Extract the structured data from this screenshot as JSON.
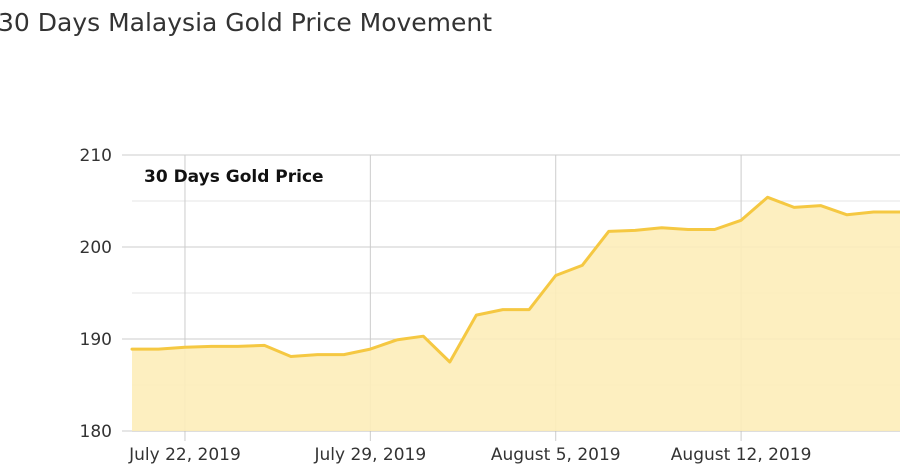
{
  "page": {
    "title": "30 Days Malaysia Gold Price Movement"
  },
  "chart_data": {
    "type": "area",
    "title": "30 Days Gold Price",
    "xlabel": "",
    "ylabel": "",
    "ylim": [
      180,
      210
    ],
    "y_ticks": [
      180,
      190,
      200,
      210
    ],
    "y_tick_labels": [
      "180",
      "190",
      "200",
      "210"
    ],
    "x_tick_labels": [
      {
        "label": "July 22, 2019",
        "index": 2
      },
      {
        "label": "July 29, 2019",
        "index": 9
      },
      {
        "label": "August 5, 2019",
        "index": 16
      },
      {
        "label": "August 12, 2019",
        "index": 23
      }
    ],
    "grid": true,
    "legend": "none",
    "colors": {
      "line": "#F5C842",
      "fill": "#FDEDB9",
      "grid": "#CCCCCC",
      "minor_grid": "#E6E6E6"
    },
    "series": [
      {
        "values": [
          188.9,
          188.9,
          189.1,
          189.2,
          189.2,
          189.3,
          188.1,
          188.3,
          188.3,
          188.9,
          189.9,
          190.3,
          187.5,
          192.6,
          193.2,
          193.2,
          196.9,
          198.0,
          201.7,
          201.8,
          202.1,
          201.9,
          201.9,
          202.9,
          205.4,
          204.3,
          204.5,
          203.5,
          203.8,
          203.8
        ]
      }
    ]
  }
}
